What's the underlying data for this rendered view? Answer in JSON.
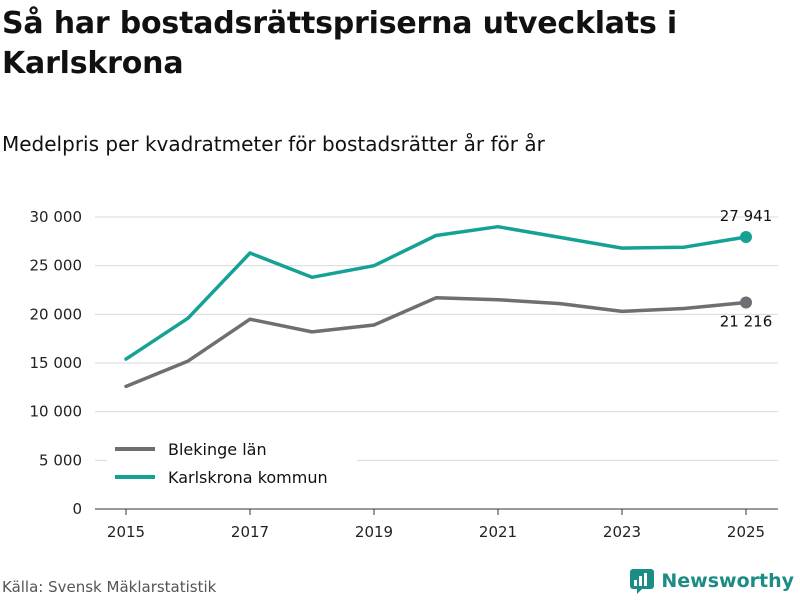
{
  "title": "Så har bostadsrättspriserna utvecklats i Karlskrona",
  "subtitle": "Medelpris per kvadratmeter för bostadsrätter år för år",
  "source": "Källa: Svensk Mäklarstatistik",
  "brand": {
    "name": "Newsworthy",
    "color": "#1c8c84"
  },
  "chart_data": {
    "type": "line",
    "x": [
      2015,
      2016,
      2017,
      2018,
      2019,
      2020,
      2021,
      2022,
      2023,
      2024,
      2025
    ],
    "x_ticks": [
      "2015",
      "2017",
      "2019",
      "2021",
      "2023",
      "2025"
    ],
    "ylim": [
      0,
      30000
    ],
    "y_ticks": [
      0,
      5000,
      10000,
      15000,
      20000,
      25000,
      30000
    ],
    "y_tick_labels": [
      "0",
      "5 000",
      "10 000",
      "15 000",
      "20 000",
      "25 000",
      "30 000"
    ],
    "grid": true,
    "legend_position": "bottom-left",
    "series": [
      {
        "name": "Blekinge län",
        "color": "#6e6e73",
        "values": [
          12600,
          15200,
          19500,
          18200,
          18900,
          21700,
          21500,
          21100,
          20300,
          20600,
          21216
        ],
        "end_label": "21 216"
      },
      {
        "name": "Karlskrona kommun",
        "color": "#15a295",
        "values": [
          15400,
          19600,
          26300,
          23800,
          25000,
          28100,
          29000,
          27900,
          26800,
          26900,
          27941
        ],
        "end_label": "27 941"
      }
    ]
  }
}
